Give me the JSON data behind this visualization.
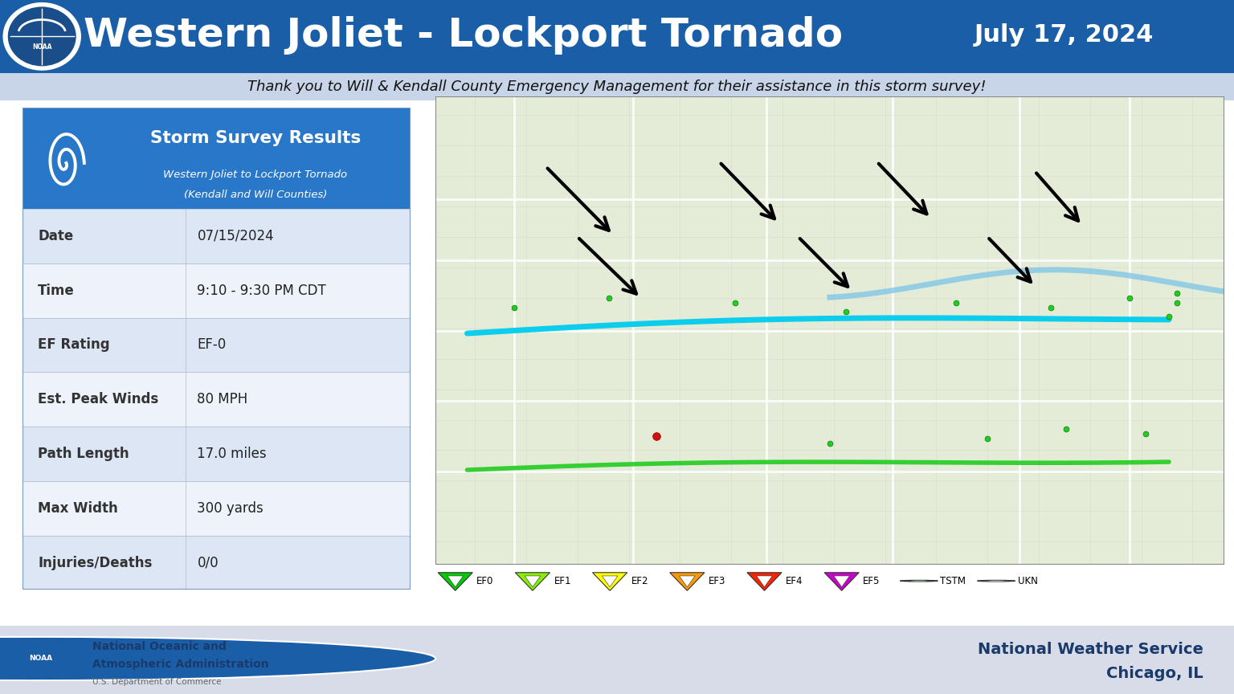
{
  "title": "Western Joliet - Lockport Tornado",
  "date_label": "July 17, 2024",
  "subtitle": "Thank you to Will & Kendall County Emergency Management for their assistance in this storm survey!",
  "header_bg": "#1a5ea8",
  "subtitle_bg": "#c8d4e8",
  "survey_title": "Storm Survey Results",
  "survey_subtitle1": "Western Joliet to Lockport Tornado",
  "survey_subtitle2": "(Kendall and Will Counties)",
  "table_rows": [
    [
      "Date",
      "07/15/2024"
    ],
    [
      "Time",
      "9:10 - 9:30 PM CDT"
    ],
    [
      "EF Rating",
      "EF-0"
    ],
    [
      "Est. Peak Winds",
      "80 MPH"
    ],
    [
      "Path Length",
      "17.0 miles"
    ],
    [
      "Max Width",
      "300 yards"
    ],
    [
      "Injuries/Deaths",
      "0/0"
    ]
  ],
  "table_header_bg": "#2977c9",
  "table_row_odd": "#dce6f5",
  "table_row_even": "#eef3fb",
  "footer_bg": "#d8dce8",
  "legend_items": [
    {
      "label": "EF0",
      "color": "#00cc00",
      "type": "triangle"
    },
    {
      "label": "EF1",
      "color": "#88ee00",
      "type": "triangle"
    },
    {
      "label": "EF2",
      "color": "#ffff00",
      "type": "triangle"
    },
    {
      "label": "EF3",
      "color": "#ff9900",
      "type": "triangle"
    },
    {
      "label": "EF4",
      "color": "#ff2200",
      "type": "triangle"
    },
    {
      "label": "EF5",
      "color": "#cc00cc",
      "type": "triangle"
    },
    {
      "label": "TSTM",
      "color": "#007700",
      "type": "circle"
    },
    {
      "label": "UKN",
      "color": "#cc99cc",
      "type": "circle"
    }
  ]
}
